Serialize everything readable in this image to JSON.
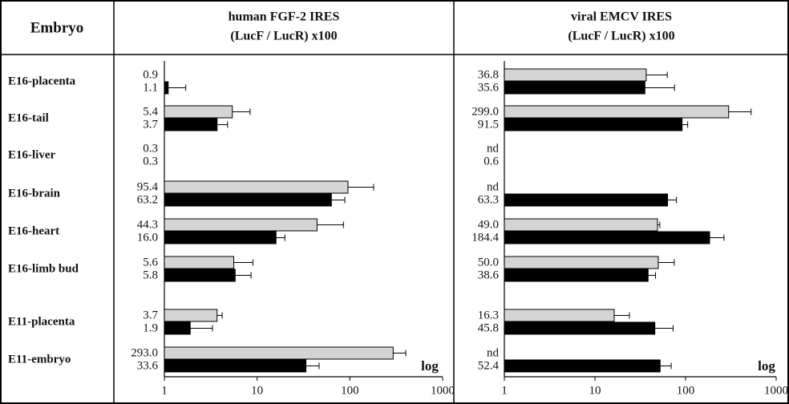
{
  "table": {
    "header": "Embryo",
    "rows": [
      "E16-placenta",
      "E16-tail",
      "E16-liver",
      "E16-brain",
      "E16-heart",
      "E16-limb bud",
      "E11-placenta",
      "E11-embryo"
    ]
  },
  "chart_data": [
    {
      "type": "bar",
      "orientation": "horizontal",
      "title": [
        "human FGF-2 IRES",
        "(LucF / LucR) x100"
      ],
      "log_scale": true,
      "xlim": [
        1,
        1000
      ],
      "xticks": [
        1,
        10,
        100,
        1000
      ],
      "annotation": "log",
      "series": [
        {
          "color": "#d4d4d4",
          "values": [
            0.9,
            5.4,
            0.3,
            95.4,
            44.3,
            5.6,
            3.7,
            293.0
          ],
          "value_labels": [
            "0.9",
            "5.4",
            "0.3",
            "95.4",
            "44.3",
            "5.6",
            "3.7",
            "293.0"
          ],
          "errors": [
            null,
            3.0,
            null,
            85,
            41,
            3.4,
            0.5,
            108
          ]
        },
        {
          "color": "#000000",
          "values": [
            1.1,
            3.7,
            0.3,
            63.2,
            16.0,
            5.8,
            1.9,
            33.6
          ],
          "value_labels": [
            "1.1",
            "3.7",
            "0.3",
            "63.2",
            "16.0",
            "5.8",
            "1.9",
            "33.6"
          ],
          "errors": [
            0.6,
            1.1,
            null,
            25,
            3.9,
            2.8,
            1.4,
            13
          ]
        }
      ]
    },
    {
      "type": "bar",
      "orientation": "horizontal",
      "title": [
        "viral EMCV IRES",
        "(LucF / LucR) x100"
      ],
      "log_scale": true,
      "xlim": [
        1,
        1000
      ],
      "xticks": [
        1,
        10,
        100,
        1000
      ],
      "annotation": "log",
      "series": [
        {
          "color": "#d4d4d4",
          "values": [
            36.8,
            299.0,
            null,
            null,
            49.0,
            50.0,
            16.3,
            null
          ],
          "value_labels": [
            "36.8",
            "299.0",
            "nd",
            "nd",
            "49.0",
            "50.0",
            "16.3",
            "nd"
          ],
          "errors": [
            26,
            230,
            null,
            null,
            3,
            25,
            7.7,
            null
          ]
        },
        {
          "color": "#000000",
          "values": [
            35.6,
            91.5,
            0.6,
            63.3,
            184.4,
            38.6,
            45.8,
            52.4
          ],
          "value_labels": [
            "35.6",
            "91.5",
            "0.6",
            "63.3",
            "184.4",
            "38.6",
            "45.8",
            "52.4"
          ],
          "errors": [
            40,
            14,
            null,
            16,
            81,
            8,
            27,
            17
          ]
        }
      ]
    }
  ]
}
